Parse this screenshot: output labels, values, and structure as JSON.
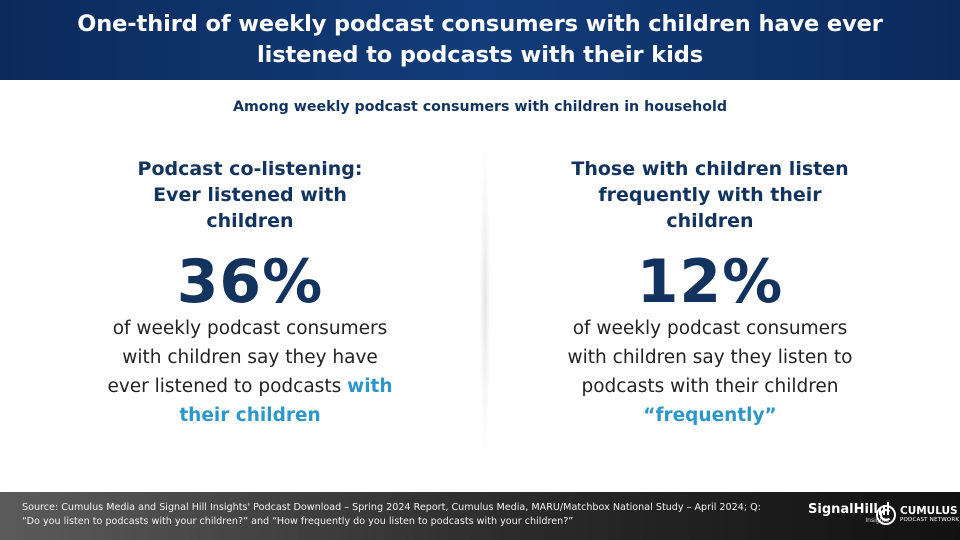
{
  "header": {
    "title": "One-third of weekly podcast consumers with children have ever listened to podcasts with their kids"
  },
  "subtitle": "Among weekly podcast consumers with children in household",
  "left": {
    "title": "Podcast co-listening: Ever listened with children",
    "stat": "36%",
    "desc_main": "of weekly podcast consumers with children say they have ever listened to podcasts",
    "desc_highlight": "with their children"
  },
  "right": {
    "title": "Those with children listen frequently with their children",
    "stat": "12%",
    "desc_main": "of weekly podcast consumers with children say they listen to podcasts with their children",
    "desc_highlight": "“frequently”"
  },
  "footer": {
    "source": "Source: Cumulus Media and Signal Hill Insights' Podcast Download – Spring 2024 Report, Cumulus Media, MARU/Matchbox National Study – April 2024; Q: “Do you listen to podcasts with your children?” and “How frequently do you listen to podcasts with your children?”",
    "logo_signal": "SignalHill",
    "logo_signal_sub": "Insights",
    "logo_cumulus": "CUMULUS",
    "logo_cumulus_sub": "PODCAST NETWORK"
  },
  "colors": {
    "navy": "#13335f",
    "highlight_blue": "#2e97c8",
    "header_bg": "#0b2a5c"
  }
}
